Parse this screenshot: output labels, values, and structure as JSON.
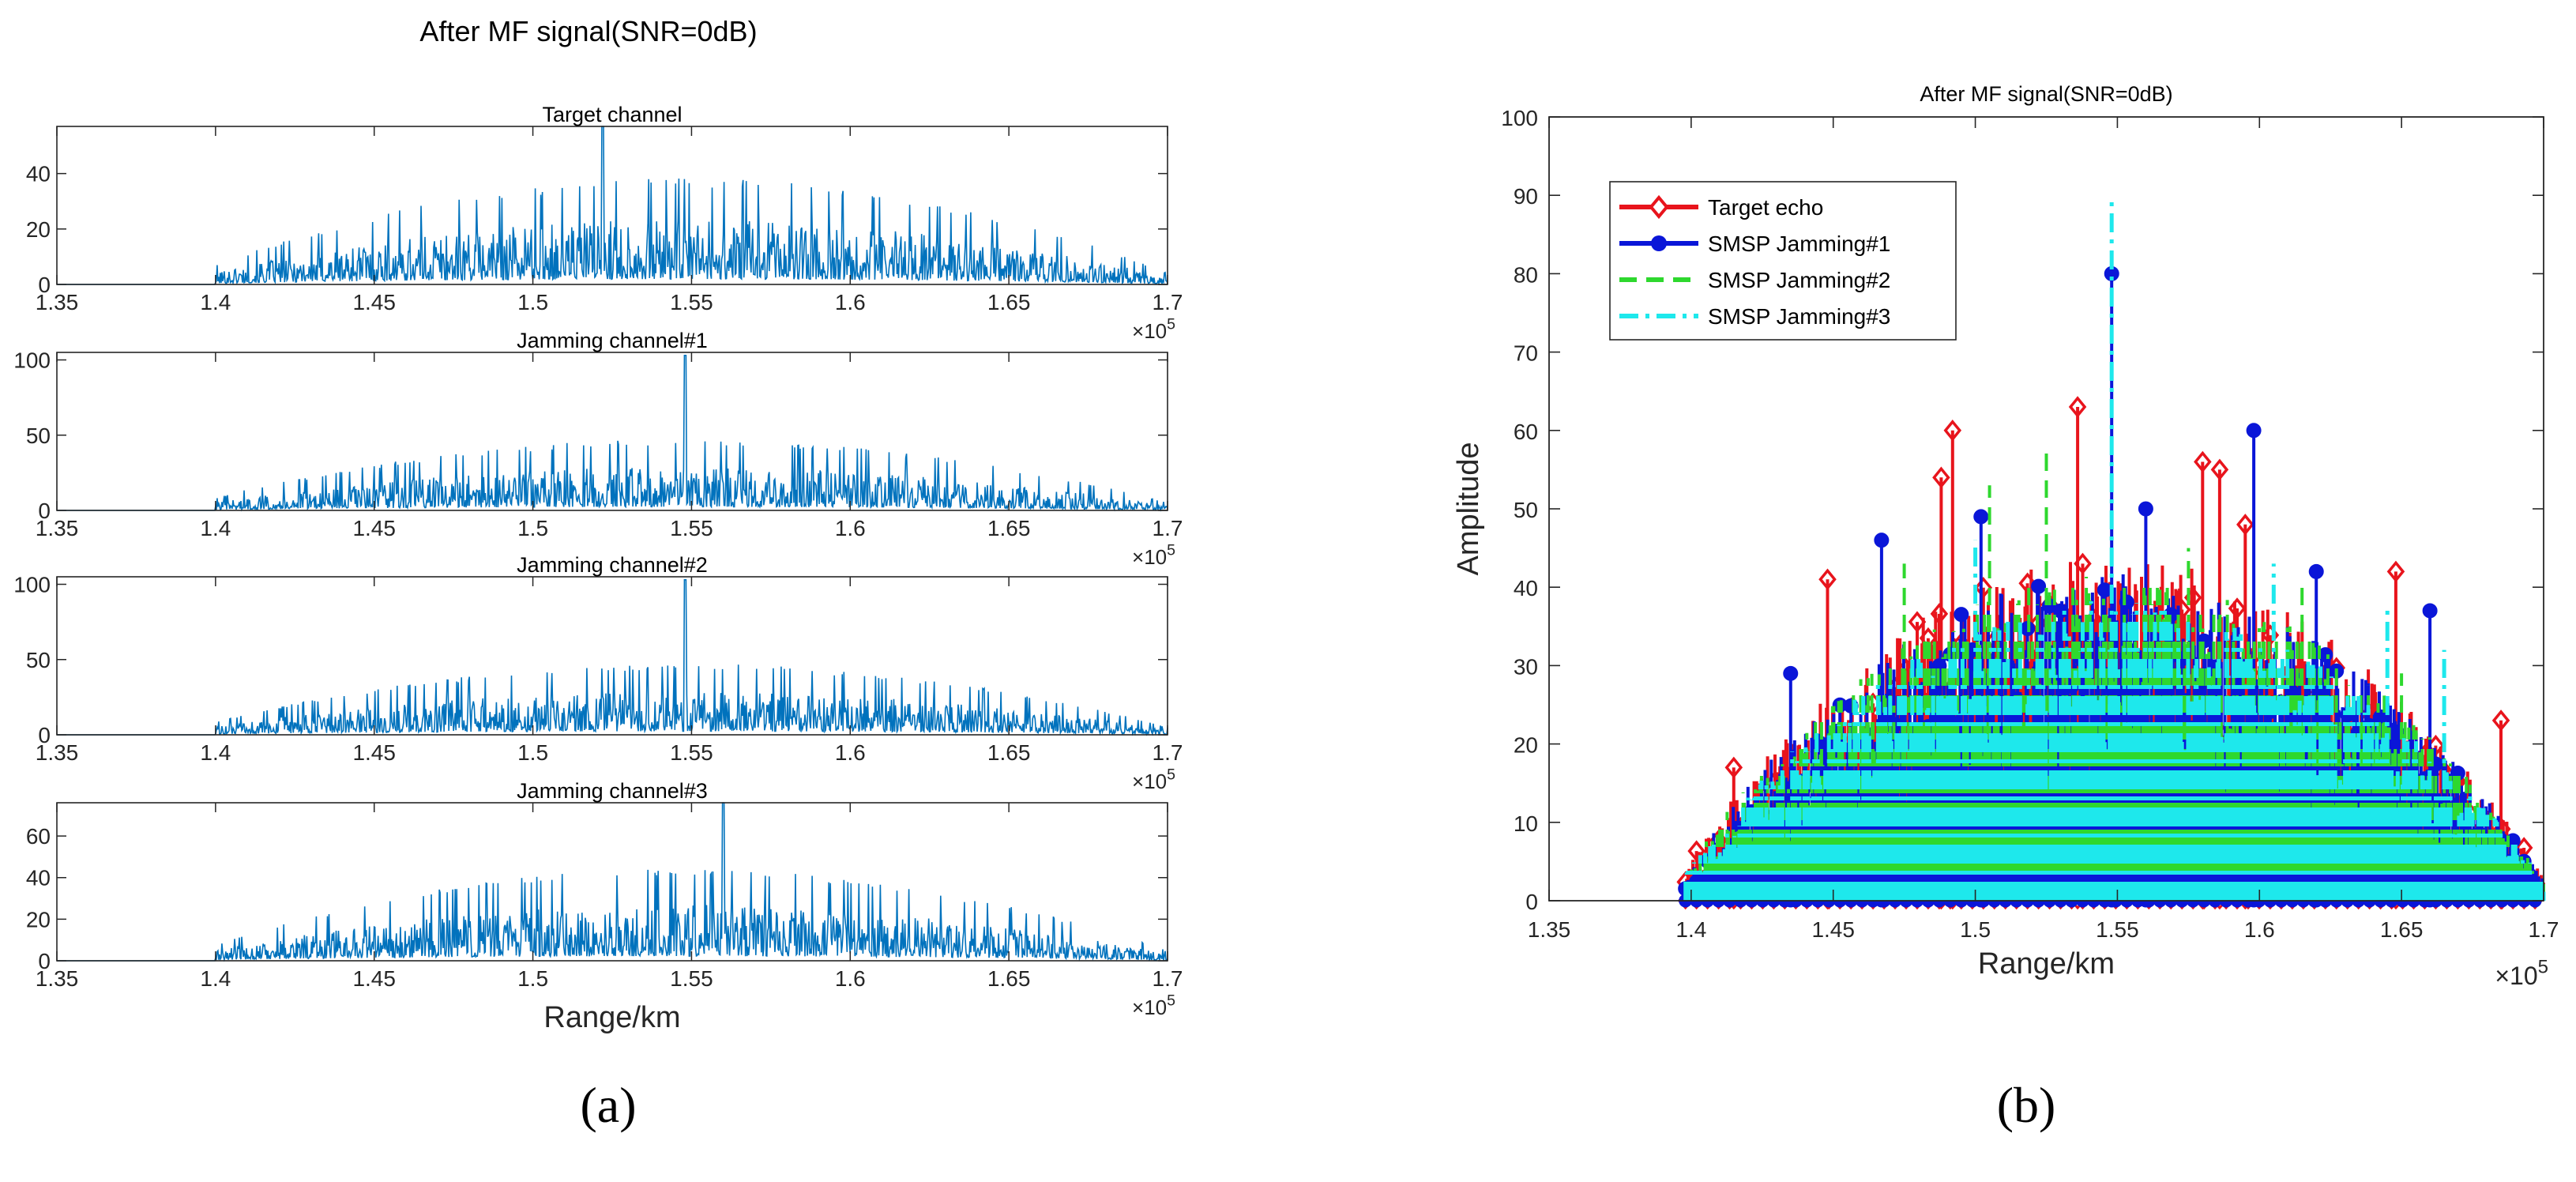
{
  "figure": {
    "panel_a_label": "(a)",
    "panel_b_label": "(b)"
  },
  "chart_data": [
    {
      "panel": "a",
      "type": "line",
      "title": "After MF signal(SNR=0dB)",
      "xlabel": "Range/km",
      "xlim": [
        135000,
        170000
      ],
      "x_ticks": [
        "1.35",
        "1.4",
        "1.45",
        "1.5",
        "1.55",
        "1.6",
        "1.65",
        "1.7"
      ],
      "x_multiplier": "×10",
      "x_multiplier_exp": "5",
      "x_range_of_signal": [
        140000,
        170000
      ],
      "subplots": [
        {
          "title": "Target channel",
          "ylim": [
            0,
            57
          ],
          "y_ticks": [
            "0",
            "20",
            "40"
          ],
          "y_tick_values": [
            0,
            20,
            40
          ],
          "typical_level": 13,
          "peak": {
            "x": 152200,
            "y": 57
          },
          "color": "#0072bd"
        },
        {
          "title": "Jamming channel#1",
          "ylim": [
            0,
            105
          ],
          "y_ticks": [
            "0",
            "50",
            "100"
          ],
          "y_tick_values": [
            0,
            50,
            100
          ],
          "typical_level": 16,
          "peak": {
            "x": 154800,
            "y": 103
          },
          "color": "#0072bd"
        },
        {
          "title": "Jamming channel#2",
          "ylim": [
            0,
            105
          ],
          "y_ticks": [
            "0",
            "50",
            "100"
          ],
          "y_tick_values": [
            0,
            50,
            100
          ],
          "typical_level": 16,
          "peak": {
            "x": 154800,
            "y": 103
          },
          "color": "#0072bd"
        },
        {
          "title": "Jamming channel#3",
          "ylim": [
            0,
            76
          ],
          "y_ticks": [
            "0",
            "20",
            "40",
            "60"
          ],
          "y_tick_values": [
            0,
            20,
            40,
            60
          ],
          "typical_level": 15,
          "peak": {
            "x": 156000,
            "y": 76
          },
          "color": "#0072bd"
        }
      ]
    },
    {
      "panel": "b",
      "type": "line",
      "title": "After MF signal(SNR=0dB)",
      "xlabel": "Range/km",
      "ylabel": "Amplitude",
      "xlim": [
        135000,
        170000
      ],
      "ylim": [
        0,
        100
      ],
      "x_ticks": [
        "1.35",
        "1.4",
        "1.45",
        "1.5",
        "1.55",
        "1.6",
        "1.65",
        "1.7"
      ],
      "y_ticks": [
        "0",
        "10",
        "20",
        "30",
        "40",
        "50",
        "60",
        "70",
        "80",
        "90",
        "100"
      ],
      "x_multiplier": "×10",
      "x_multiplier_exp": "5",
      "legend_position": "top-left",
      "series": [
        {
          "name": "Target echo",
          "color": "#e8141c",
          "style": "solid",
          "marker": "diamond",
          "typical_level": 40,
          "peaks": [
            [
              141500,
              17
            ],
            [
              144800,
              41
            ],
            [
              148800,
              54
            ],
            [
              149200,
              60
            ],
            [
              153600,
              63
            ],
            [
              158000,
              56
            ],
            [
              158600,
              55
            ],
            [
              159500,
              48
            ],
            [
              164800,
              42
            ],
            [
              168500,
              23
            ]
          ]
        },
        {
          "name": "SMSP Jamming#1",
          "color": "#0a16d8",
          "style": "solid",
          "marker": "circle",
          "typical_level": 38,
          "peaks": [
            [
              143500,
              29
            ],
            [
              146700,
              46
            ],
            [
              150200,
              49
            ],
            [
              154800,
              80
            ],
            [
              156000,
              50
            ],
            [
              159800,
              60
            ],
            [
              162000,
              42
            ],
            [
              166000,
              37
            ]
          ]
        },
        {
          "name": "SMSP Jamming#2",
          "color": "#2ed82e",
          "style": "dashed",
          "marker": "none",
          "typical_level": 38,
          "peaks": [
            [
              147500,
              43
            ],
            [
              150500,
              53
            ],
            [
              152500,
              58
            ],
            [
              157500,
              45
            ],
            [
              161500,
              40
            ],
            [
              165000,
              29
            ]
          ]
        },
        {
          "name": "SMSP Jamming#3",
          "color": "#1ee8ec",
          "style": "dashdot",
          "marker": "none",
          "typical_level": 35,
          "peaks": [
            [
              154800,
              90
            ],
            [
              150000,
              46
            ],
            [
              160500,
              43
            ],
            [
              164500,
              37
            ],
            [
              166500,
              32
            ]
          ]
        }
      ]
    }
  ]
}
